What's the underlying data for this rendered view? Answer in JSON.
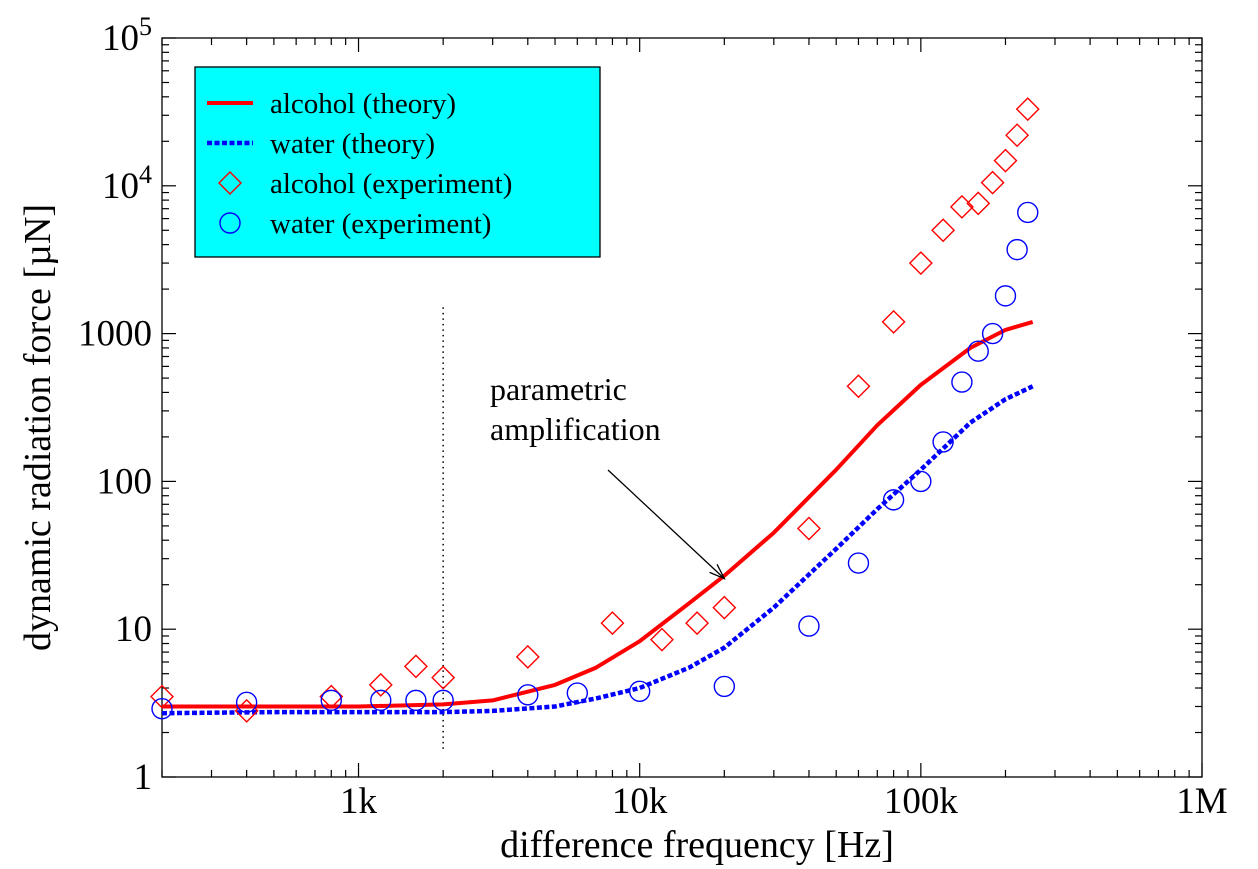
{
  "chart_data": {
    "type": "scatter",
    "title": "",
    "xlabel": "difference frequency [Hz]",
    "ylabel": "dynamic radiation force [µN]",
    "xscale": "log",
    "yscale": "log",
    "xlim": [
      200,
      1000000
    ],
    "ylim": [
      1,
      100000
    ],
    "x_ticks": [
      {
        "value": 1000,
        "label": "1k"
      },
      {
        "value": 10000,
        "label": "10k"
      },
      {
        "value": 100000,
        "label": "100k"
      },
      {
        "value": 1000000,
        "label": "1M"
      }
    ],
    "y_ticks": [
      {
        "value": 1,
        "label": "1",
        "sup": ""
      },
      {
        "value": 10,
        "label": "10",
        "sup": ""
      },
      {
        "value": 100,
        "label": "100",
        "sup": ""
      },
      {
        "value": 1000,
        "label": "1000",
        "sup": ""
      },
      {
        "value": 10000,
        "label": "10",
        "sup": "4"
      },
      {
        "value": 100000,
        "label": "10",
        "sup": "5"
      }
    ],
    "grid": false,
    "legend_position": "top-left",
    "legend_background": "#00ffff",
    "series": [
      {
        "name": "alcohol (theory)",
        "kind": "line",
        "style": "solid",
        "color": "#ff0000",
        "x": [
          200,
          500,
          1000,
          2000,
          3000,
          5000,
          7000,
          10000,
          15000,
          20000,
          30000,
          50000,
          70000,
          100000,
          150000,
          200000,
          250000
        ],
        "y": [
          3.0,
          3.0,
          3.0,
          3.1,
          3.3,
          4.2,
          5.5,
          8.3,
          15,
          23,
          45,
          120,
          240,
          450,
          800,
          1060,
          1200
        ]
      },
      {
        "name": "water (theory)",
        "kind": "line",
        "style": "dashed",
        "color": "#0000ff",
        "x": [
          200,
          500,
          1000,
          2000,
          3000,
          5000,
          7000,
          10000,
          15000,
          20000,
          30000,
          50000,
          70000,
          100000,
          150000,
          200000,
          250000
        ],
        "y": [
          2.7,
          2.75,
          2.75,
          2.75,
          2.8,
          3.0,
          3.4,
          4.0,
          5.5,
          7.5,
          14,
          35,
          65,
          120,
          250,
          360,
          440
        ]
      },
      {
        "name": "alcohol (experiment)",
        "kind": "marker",
        "marker": "diamond",
        "color": "#ff0000",
        "x": [
          200,
          400,
          800,
          1200,
          1600,
          2000,
          4000,
          8000,
          12000,
          16000,
          20000,
          40000,
          60000,
          80000,
          100000,
          120000,
          140000,
          160000,
          180000,
          200000,
          220000,
          240000
        ],
        "y": [
          3.5,
          2.8,
          3.5,
          4.2,
          5.6,
          4.7,
          6.5,
          11,
          8.5,
          11,
          14,
          48,
          440,
          1200,
          3000,
          5000,
          7200,
          7600,
          10500,
          14800,
          22000,
          33000
        ]
      },
      {
        "name": "water (experiment)",
        "kind": "marker",
        "marker": "circle",
        "color": "#0000ff",
        "x": [
          200,
          400,
          800,
          1200,
          1600,
          2000,
          4000,
          6000,
          10000,
          20000,
          40000,
          60000,
          80000,
          100000,
          120000,
          140000,
          160000,
          180000,
          200000,
          220000,
          240000
        ],
        "y": [
          2.9,
          3.2,
          3.3,
          3.3,
          3.3,
          3.3,
          3.6,
          3.7,
          3.8,
          4.1,
          10.5,
          28,
          75,
          100,
          185,
          470,
          760,
          1000,
          1800,
          3700,
          6600
        ]
      }
    ],
    "reference_line": {
      "axis": "x",
      "value": 2000,
      "style": "dotted",
      "color": "#000000"
    },
    "annotation": {
      "lines": [
        "parametric",
        "amplification"
      ],
      "arrow_tip": {
        "x": 20000,
        "y": 22
      }
    }
  }
}
